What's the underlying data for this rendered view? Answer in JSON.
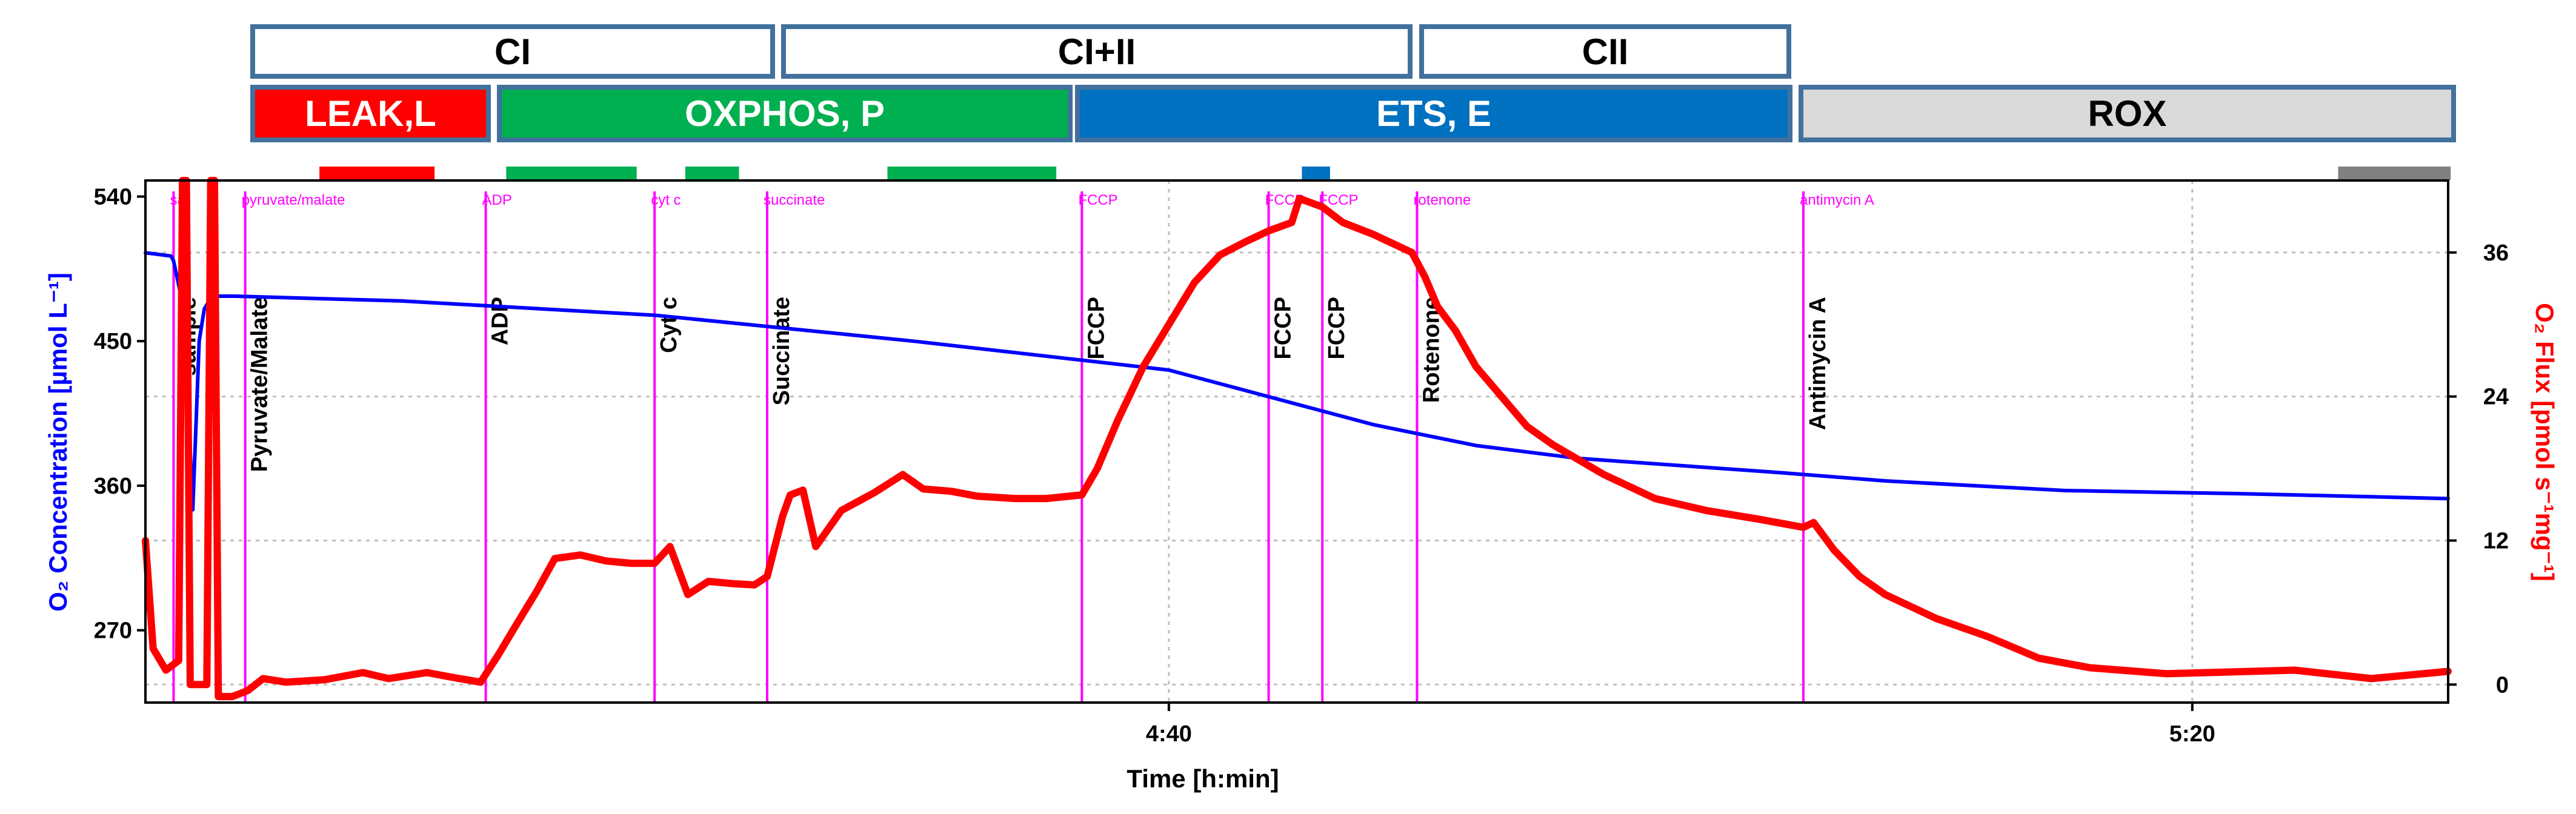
{
  "protocol": {
    "pathways": [
      {
        "label": "CI",
        "color": "#ffffff"
      },
      {
        "label": "CI+II",
        "color": "#ffffff"
      },
      {
        "label": "CII",
        "color": "#ffffff"
      }
    ],
    "states": [
      {
        "label": "LEAK,L",
        "color": "#ff0000"
      },
      {
        "label": "OXPHOS, P",
        "color": "#00b050"
      },
      {
        "label": "ETS, E",
        "color": "#0070c0"
      },
      {
        "label": "ROX",
        "color": "#d9d9d9"
      }
    ],
    "marks": [
      {
        "color": "#ff0000",
        "t_start": 6.8,
        "t_end": 11.3
      },
      {
        "color": "#00b050",
        "t_start": 14.1,
        "t_end": 19.2
      },
      {
        "color": "#00b050",
        "t_start": 21.1,
        "t_end": 23.2
      },
      {
        "color": "#00b050",
        "t_start": 29.0,
        "t_end": 35.6
      },
      {
        "color": "#0070c0",
        "t_start": 45.2,
        "t_end": 46.3
      },
      {
        "color": "#808080",
        "t_start": 85.7,
        "t_end": 90.1
      }
    ]
  },
  "chart_data": {
    "type": "line",
    "xlabel": "Time [h:min]",
    "x_ticks": [
      {
        "t": 40,
        "label": "4:40"
      },
      {
        "t": 80,
        "label": "5:20"
      }
    ],
    "xlim": [
      0,
      90
    ],
    "ylabel_left": "O₂ Concentration [µmol L⁻¹]",
    "ylim_left": [
      225,
      550
    ],
    "yticks_left": [
      270,
      360,
      450,
      540
    ],
    "ylabel_right": "O₂ Flux [pmol s⁻¹mg⁻¹]",
    "ylim_right": [
      -1.5,
      42
    ],
    "yticks_right": [
      0,
      12,
      24,
      36
    ],
    "colors": {
      "left": "#0000ff",
      "right": "#ff0000",
      "event": "#ff00ff"
    },
    "events": [
      {
        "t": 1.1,
        "top": "sa",
        "label": "sample"
      },
      {
        "t": 3.9,
        "top": "pyruvate/malate",
        "label": "Pyruvate/Malate"
      },
      {
        "t": 13.3,
        "top": "ADP",
        "label": "ADP"
      },
      {
        "t": 19.9,
        "top": "cyt c",
        "label": "Cyt c"
      },
      {
        "t": 24.3,
        "top": "succinate",
        "label": "Succinate"
      },
      {
        "t": 36.6,
        "top": "FCCP",
        "label": "FCCP"
      },
      {
        "t": 43.9,
        "top": "FCCP",
        "label": "FCCP"
      },
      {
        "t": 46.0,
        "top": "FCCP",
        "label": "FCCP"
      },
      {
        "t": 49.7,
        "top": "rotenone",
        "label": "Rotenone"
      },
      {
        "t": 64.8,
        "top": "antimycin A",
        "label": "Antimycin A"
      }
    ],
    "series": [
      {
        "name": "O2 Concentration",
        "axis": "left",
        "points": [
          [
            0,
            505
          ],
          [
            1.0,
            503
          ],
          [
            1.1,
            500
          ],
          [
            1.5,
            470
          ],
          [
            1.7,
            400
          ],
          [
            1.85,
            345
          ],
          [
            2.1,
            450
          ],
          [
            2.3,
            470
          ],
          [
            2.6,
            478
          ],
          [
            3.5,
            478
          ],
          [
            10,
            475
          ],
          [
            20,
            466
          ],
          [
            30,
            450
          ],
          [
            40,
            432
          ],
          [
            44,
            415
          ],
          [
            48,
            398
          ],
          [
            52,
            385
          ],
          [
            56,
            377
          ],
          [
            64,
            368
          ],
          [
            68,
            363
          ],
          [
            75,
            357
          ],
          [
            82,
            355
          ],
          [
            90,
            352
          ]
        ]
      },
      {
        "name": "O2 Flux",
        "axis": "right",
        "points": [
          [
            0,
            12
          ],
          [
            0.3,
            3
          ],
          [
            0.8,
            1.2
          ],
          [
            1.3,
            2
          ],
          [
            1.45,
            42
          ],
          [
            1.6,
            42
          ],
          [
            1.75,
            0
          ],
          [
            2.4,
            0
          ],
          [
            2.55,
            42
          ],
          [
            2.7,
            42
          ],
          [
            2.85,
            -1
          ],
          [
            3.4,
            -1
          ],
          [
            4.0,
            -0.5
          ],
          [
            4.6,
            0.5
          ],
          [
            5.5,
            0.2
          ],
          [
            7,
            0.4
          ],
          [
            8.5,
            1.0
          ],
          [
            9.5,
            0.5
          ],
          [
            11,
            1.0
          ],
          [
            12,
            0.6
          ],
          [
            13.1,
            0.2
          ],
          [
            13.8,
            2.5
          ],
          [
            14.5,
            5
          ],
          [
            15.3,
            7.8
          ],
          [
            16,
            10.5
          ],
          [
            17,
            10.8
          ],
          [
            18,
            10.3
          ],
          [
            19,
            10.1
          ],
          [
            19.9,
            10.1
          ],
          [
            20.5,
            11.5
          ],
          [
            21.2,
            7.5
          ],
          [
            22,
            8.6
          ],
          [
            23,
            8.4
          ],
          [
            23.8,
            8.3
          ],
          [
            24.3,
            9
          ],
          [
            24.9,
            14
          ],
          [
            25.2,
            15.8
          ],
          [
            25.7,
            16.2
          ],
          [
            26.2,
            11.5
          ],
          [
            27.2,
            14.5
          ],
          [
            28.5,
            16
          ],
          [
            29.6,
            17.5
          ],
          [
            30.4,
            16.3
          ],
          [
            31.5,
            16.1
          ],
          [
            32.5,
            15.7
          ],
          [
            34,
            15.5
          ],
          [
            35.2,
            15.5
          ],
          [
            36.6,
            15.8
          ],
          [
            37.2,
            18
          ],
          [
            38,
            22
          ],
          [
            39,
            26.5
          ],
          [
            40,
            30
          ],
          [
            41,
            33.5
          ],
          [
            42,
            35.8
          ],
          [
            43,
            36.9
          ],
          [
            43.9,
            37.8
          ],
          [
            44.8,
            38.5
          ],
          [
            45.1,
            40.5
          ],
          [
            46.0,
            39.8
          ],
          [
            46.8,
            38.5
          ],
          [
            48,
            37.5
          ],
          [
            49.5,
            36
          ],
          [
            50,
            34
          ],
          [
            50.5,
            31.5
          ],
          [
            51.2,
            29.5
          ],
          [
            52,
            26.5
          ],
          [
            53,
            24
          ],
          [
            54,
            21.5
          ],
          [
            55,
            20
          ],
          [
            57,
            17.5
          ],
          [
            59,
            15.5
          ],
          [
            61,
            14.5
          ],
          [
            63,
            13.8
          ],
          [
            64.8,
            13.1
          ],
          [
            65.2,
            13.5
          ],
          [
            66,
            11.2
          ],
          [
            67,
            9
          ],
          [
            68,
            7.5
          ],
          [
            70,
            5.5
          ],
          [
            72,
            4
          ],
          [
            74,
            2.2
          ],
          [
            76,
            1.4
          ],
          [
            79,
            0.9
          ],
          [
            84,
            1.2
          ],
          [
            87,
            0.5
          ],
          [
            90,
            1.1
          ]
        ]
      }
    ]
  }
}
